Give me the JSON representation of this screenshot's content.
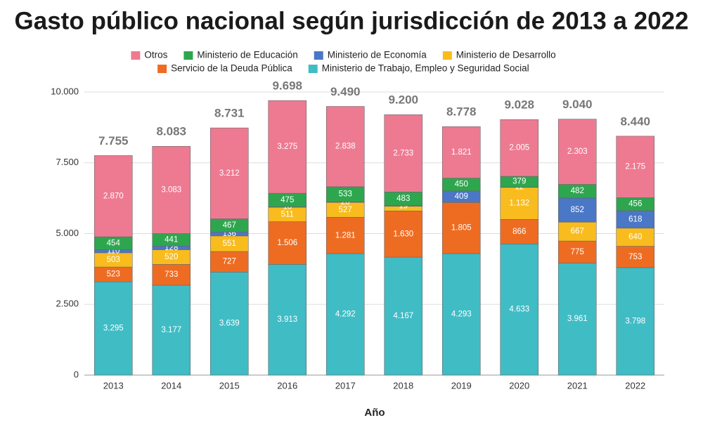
{
  "chart_data": {
    "type": "stacked_bar",
    "title": "Gasto público nacional según jurisdicción de 2013 a 2022",
    "x_label": "Año",
    "categories": [
      "2013",
      "2014",
      "2015",
      "2016",
      "2017",
      "2018",
      "2019",
      "2020",
      "2021",
      "2022"
    ],
    "series": [
      {
        "name": "Ministerio de Trabajo, Empleo y Seguridad Social",
        "color": "#40bcc5",
        "values": [
          3295,
          3177,
          3639,
          3913,
          4292,
          4167,
          4293,
          4633,
          3961,
          3798
        ],
        "value_labels": [
          "3.295",
          "3.177",
          "3.639",
          "3.913",
          "4.292",
          "4.167",
          "4.293",
          "4.633",
          "3.961",
          "3.798"
        ]
      },
      {
        "name": "Servicio de la Deuda Pública",
        "color": "#ee6c22",
        "values": [
          523,
          733,
          727,
          1506,
          1281,
          1630,
          1805,
          866,
          775,
          753
        ],
        "value_labels": [
          "523",
          "733",
          "727",
          "1.506",
          "1.281",
          "1.630",
          "1.805",
          "866",
          "775",
          "753"
        ]
      },
      {
        "name": "Ministerio de Desarrollo",
        "color": "#f9bc1e",
        "values": [
          503,
          520,
          551,
          511,
          527,
          168,
          0,
          1132,
          667,
          640
        ],
        "value_labels": [
          "503",
          "520",
          "551",
          "511",
          "527",
          null,
          null,
          "1.132",
          "667",
          "640"
        ]
      },
      {
        "name": "Ministerio de Economía",
        "color": "#4a77c6",
        "values": [
          110,
          128,
          136,
          18,
          20,
          19,
          409,
          12,
          852,
          618
        ],
        "value_labels": [
          "110",
          "128",
          "136",
          "18",
          "20",
          "19",
          "409",
          "12",
          "852",
          "618"
        ]
      },
      {
        "name": "Ministerio de Educación",
        "color": "#2ea64e",
        "values": [
          454,
          441,
          467,
          475,
          533,
          483,
          450,
          379,
          482,
          456
        ],
        "value_labels": [
          "454",
          "441",
          "467",
          "475",
          "533",
          "483",
          "450",
          "379",
          "482",
          "456"
        ]
      },
      {
        "name": "Otros",
        "color": "#ee7a92",
        "values": [
          2870,
          3083,
          3212,
          3275,
          2838,
          2733,
          1821,
          2005,
          2303,
          2175
        ],
        "value_labels": [
          "2.870",
          "3.083",
          "3.212",
          "3.275",
          "2.838",
          "2.733",
          "1.821",
          "2.005",
          "2.303",
          "2.175"
        ]
      }
    ],
    "totals": {
      "values": [
        7755,
        8083,
        8731,
        9698,
        9490,
        9200,
        8778,
        9028,
        9040,
        8440
      ],
      "value_labels": [
        "7.755",
        "8.083",
        "8.731",
        "9.698",
        "9.490",
        "9.200",
        "8.778",
        "9.028",
        "9.040",
        "8.440"
      ]
    },
    "ylim": [
      0,
      10000
    ],
    "yticks": [
      0,
      {
        "value": 2500,
        "label": "2.500"
      },
      {
        "value": 5000,
        "label": "5.000"
      },
      {
        "value": 7500,
        "label": "7.500"
      },
      {
        "value": 10000,
        "label": "10.000"
      }
    ],
    "grid": true
  }
}
